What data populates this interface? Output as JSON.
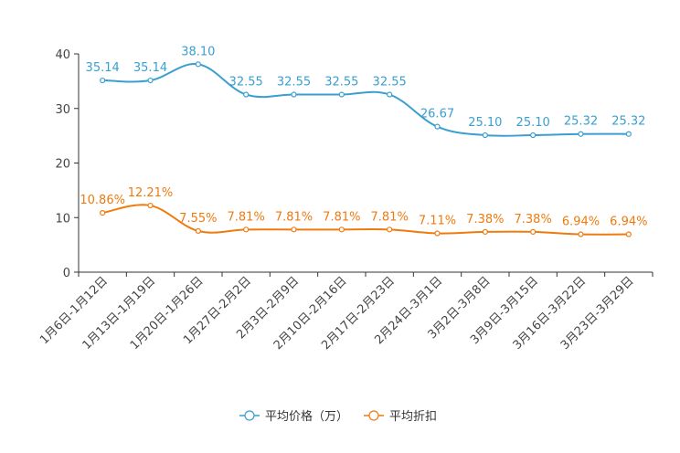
{
  "chart_data": {
    "type": "line",
    "categories": [
      "1月6日-1月12日",
      "1月13日-1月19日",
      "1月20日-1月26日",
      "1月27日-2月2日",
      "2月3日-2月9日",
      "2月10日-2月16日",
      "2月17日-2月23日",
      "2月24日-3月1日",
      "3月2日-3月8日",
      "3月9日-3月15日",
      "3月16日-3月22日",
      "3月23日-3月29日"
    ],
    "series": [
      {
        "name": "平均价格（万）",
        "color": "#3a9fd0",
        "values": [
          35.14,
          35.14,
          38.1,
          32.55,
          32.55,
          32.55,
          32.55,
          26.67,
          25.1,
          25.1,
          25.32,
          25.32
        ],
        "labels": [
          "35.14",
          "35.14",
          "38.10",
          "32.55",
          "32.55",
          "32.55",
          "32.55",
          "26.67",
          "25.10",
          "25.10",
          "25.32",
          "25.32"
        ]
      },
      {
        "name": "平均折扣",
        "color": "#ef7a0e",
        "values": [
          10.86,
          12.21,
          7.55,
          7.81,
          7.81,
          7.81,
          7.81,
          7.11,
          7.38,
          7.38,
          6.94,
          6.94
        ],
        "labels": [
          "10.86%",
          "12.21%",
          "7.55%",
          "7.81%",
          "7.81%",
          "7.81%",
          "7.81%",
          "7.11%",
          "7.38%",
          "7.38%",
          "6.94%",
          "6.94%"
        ]
      }
    ],
    "y_ticks": [
      "0",
      "10",
      "20",
      "30",
      "40"
    ],
    "ylim": [
      0,
      40
    ],
    "title": "",
    "xlabel": "",
    "ylabel": "",
    "legend_position": "bottom-center"
  }
}
